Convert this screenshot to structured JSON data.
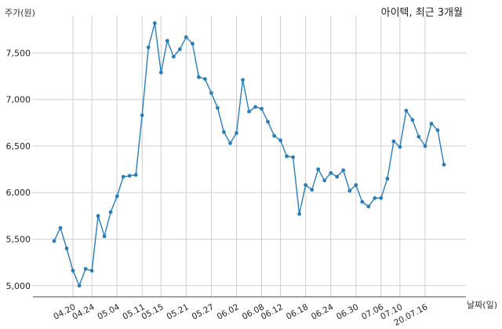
{
  "chart_data": {
    "type": "line",
    "title": "아이텍, 최근 3개월",
    "ylabel": "주가(원)",
    "xlabel": "날짜(일)",
    "ylim": [
      4880,
      7900
    ],
    "yticks": [
      5000,
      5500,
      6000,
      6500,
      7000,
      7500
    ],
    "ytick_labels": [
      "5,000",
      "5,500",
      "6,000",
      "6,500",
      "7,000",
      "7,500"
    ],
    "grid": true,
    "color": "#2a7db8",
    "xtick_labels": [
      "04.20",
      "04.24",
      "05.04",
      "05.11",
      "05.15",
      "05.21",
      "05.27",
      "06.02",
      "06.08",
      "06.12",
      "06.18",
      "06.24",
      "06.30",
      "07.06",
      "07.10",
      "20.07.16"
    ],
    "xtick_index": [
      3,
      6,
      10,
      14,
      17,
      21,
      25,
      29,
      33,
      36,
      40,
      44,
      48,
      52,
      55,
      59
    ],
    "series": [
      {
        "values": [
          5480,
          5620,
          5400,
          5160,
          5000,
          5180,
          5160,
          5750,
          5530,
          5790,
          5960,
          6170,
          6180,
          6190,
          6830,
          7560,
          7820,
          7290,
          7630,
          7460,
          7540,
          7670,
          7600,
          7240,
          7220,
          7070,
          6910,
          6650,
          6530,
          6640,
          7210,
          6870,
          6920,
          6900,
          6760,
          6610,
          6560,
          6390,
          6380,
          5770,
          6080,
          6030,
          6250,
          6130,
          6210,
          6170,
          6240,
          6020,
          6080,
          5900,
          5850,
          5940,
          5940,
          6150,
          6550,
          6490,
          6880,
          6780,
          6600,
          6500,
          6740,
          6670,
          6300
        ]
      }
    ]
  }
}
